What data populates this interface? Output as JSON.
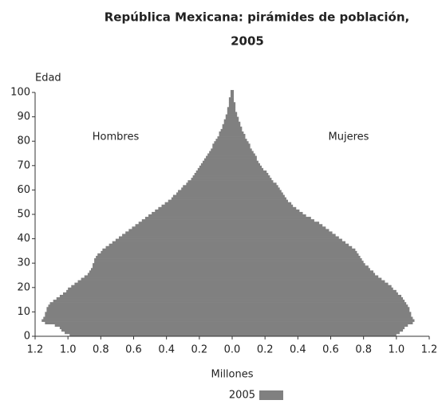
{
  "chart_data": {
    "type": "pyramid",
    "title": "República Mexicana: pirámides de población,",
    "subtitle": "2005",
    "ylabel": "Edad",
    "xlabel": "Millones",
    "legend": "2005",
    "color": "#808080",
    "y": [
      0,
      1,
      2,
      3,
      4,
      5,
      6,
      7,
      8,
      9,
      10,
      11,
      12,
      13,
      14,
      15,
      16,
      17,
      18,
      19,
      20,
      21,
      22,
      23,
      24,
      25,
      26,
      27,
      28,
      29,
      30,
      31,
      32,
      33,
      34,
      35,
      36,
      37,
      38,
      39,
      40,
      41,
      42,
      43,
      44,
      45,
      46,
      47,
      48,
      49,
      50,
      51,
      52,
      53,
      54,
      55,
      56,
      57,
      58,
      59,
      60,
      61,
      62,
      63,
      64,
      65,
      66,
      67,
      68,
      69,
      70,
      71,
      72,
      73,
      74,
      75,
      76,
      77,
      78,
      79,
      80,
      81,
      82,
      83,
      84,
      85,
      86,
      87,
      88,
      89,
      90,
      91,
      92,
      93,
      94,
      95,
      96,
      97,
      98,
      99,
      100
    ],
    "series": [
      {
        "name": "Hombres",
        "side": "left",
        "values": [
          0.99,
          1.02,
          1.04,
          1.05,
          1.08,
          1.14,
          1.16,
          1.15,
          1.14,
          1.14,
          1.13,
          1.13,
          1.12,
          1.11,
          1.09,
          1.07,
          1.05,
          1.03,
          1.01,
          1.0,
          0.98,
          0.96,
          0.94,
          0.92,
          0.9,
          0.88,
          0.87,
          0.86,
          0.85,
          0.85,
          0.84,
          0.84,
          0.83,
          0.82,
          0.8,
          0.79,
          0.77,
          0.75,
          0.73,
          0.71,
          0.69,
          0.67,
          0.65,
          0.63,
          0.61,
          0.59,
          0.57,
          0.55,
          0.53,
          0.51,
          0.49,
          0.47,
          0.45,
          0.43,
          0.41,
          0.39,
          0.37,
          0.36,
          0.34,
          0.33,
          0.31,
          0.3,
          0.28,
          0.27,
          0.25,
          0.24,
          0.23,
          0.22,
          0.21,
          0.2,
          0.19,
          0.18,
          0.17,
          0.16,
          0.15,
          0.14,
          0.13,
          0.12,
          0.12,
          0.11,
          0.1,
          0.09,
          0.08,
          0.08,
          0.07,
          0.06,
          0.06,
          0.05,
          0.05,
          0.04,
          0.04,
          0.03,
          0.03,
          0.03,
          0.02,
          0.02,
          0.02,
          0.02,
          0.01,
          0.01,
          0.01
        ]
      },
      {
        "name": "Mujeres",
        "side": "right",
        "values": [
          1.0,
          1.02,
          1.04,
          1.05,
          1.07,
          1.1,
          1.11,
          1.1,
          1.09,
          1.09,
          1.08,
          1.08,
          1.07,
          1.06,
          1.05,
          1.04,
          1.03,
          1.01,
          1.0,
          0.98,
          0.97,
          0.95,
          0.93,
          0.91,
          0.89,
          0.87,
          0.86,
          0.84,
          0.83,
          0.81,
          0.8,
          0.79,
          0.78,
          0.77,
          0.76,
          0.75,
          0.73,
          0.71,
          0.69,
          0.67,
          0.65,
          0.63,
          0.61,
          0.59,
          0.57,
          0.55,
          0.53,
          0.5,
          0.48,
          0.45,
          0.43,
          0.41,
          0.39,
          0.37,
          0.36,
          0.34,
          0.33,
          0.32,
          0.31,
          0.3,
          0.29,
          0.28,
          0.27,
          0.25,
          0.24,
          0.23,
          0.22,
          0.21,
          0.19,
          0.18,
          0.17,
          0.16,
          0.15,
          0.15,
          0.14,
          0.13,
          0.12,
          0.11,
          0.11,
          0.1,
          0.09,
          0.08,
          0.08,
          0.07,
          0.06,
          0.06,
          0.05,
          0.05,
          0.04,
          0.04,
          0.03,
          0.03,
          0.02,
          0.02,
          0.02,
          0.02,
          0.01,
          0.01,
          0.01,
          0.01,
          0.01
        ]
      }
    ],
    "xlim": [
      -1.2,
      1.2
    ],
    "xticks": [
      {
        "value": -1.2,
        "label": "1.2"
      },
      {
        "value": -1.0,
        "label": "1.0"
      },
      {
        "value": -0.8,
        "label": "0.8"
      },
      {
        "value": -0.6,
        "label": "0.6"
      },
      {
        "value": -0.4,
        "label": "0.4"
      },
      {
        "value": -0.2,
        "label": "0.2"
      },
      {
        "value": 0,
        "label": "0.0"
      },
      {
        "value": 0.2,
        "label": "0.2"
      },
      {
        "value": 0.4,
        "label": "0.4"
      },
      {
        "value": 0.6,
        "label": "0.6"
      },
      {
        "value": 0.8,
        "label": "0.8"
      },
      {
        "value": 1.0,
        "label": "1.0"
      },
      {
        "value": 1.2,
        "label": "1.2"
      }
    ],
    "ylim": [
      0,
      100
    ],
    "yticks": [
      0,
      10,
      20,
      30,
      40,
      50,
      60,
      70,
      80,
      90,
      100
    ]
  }
}
